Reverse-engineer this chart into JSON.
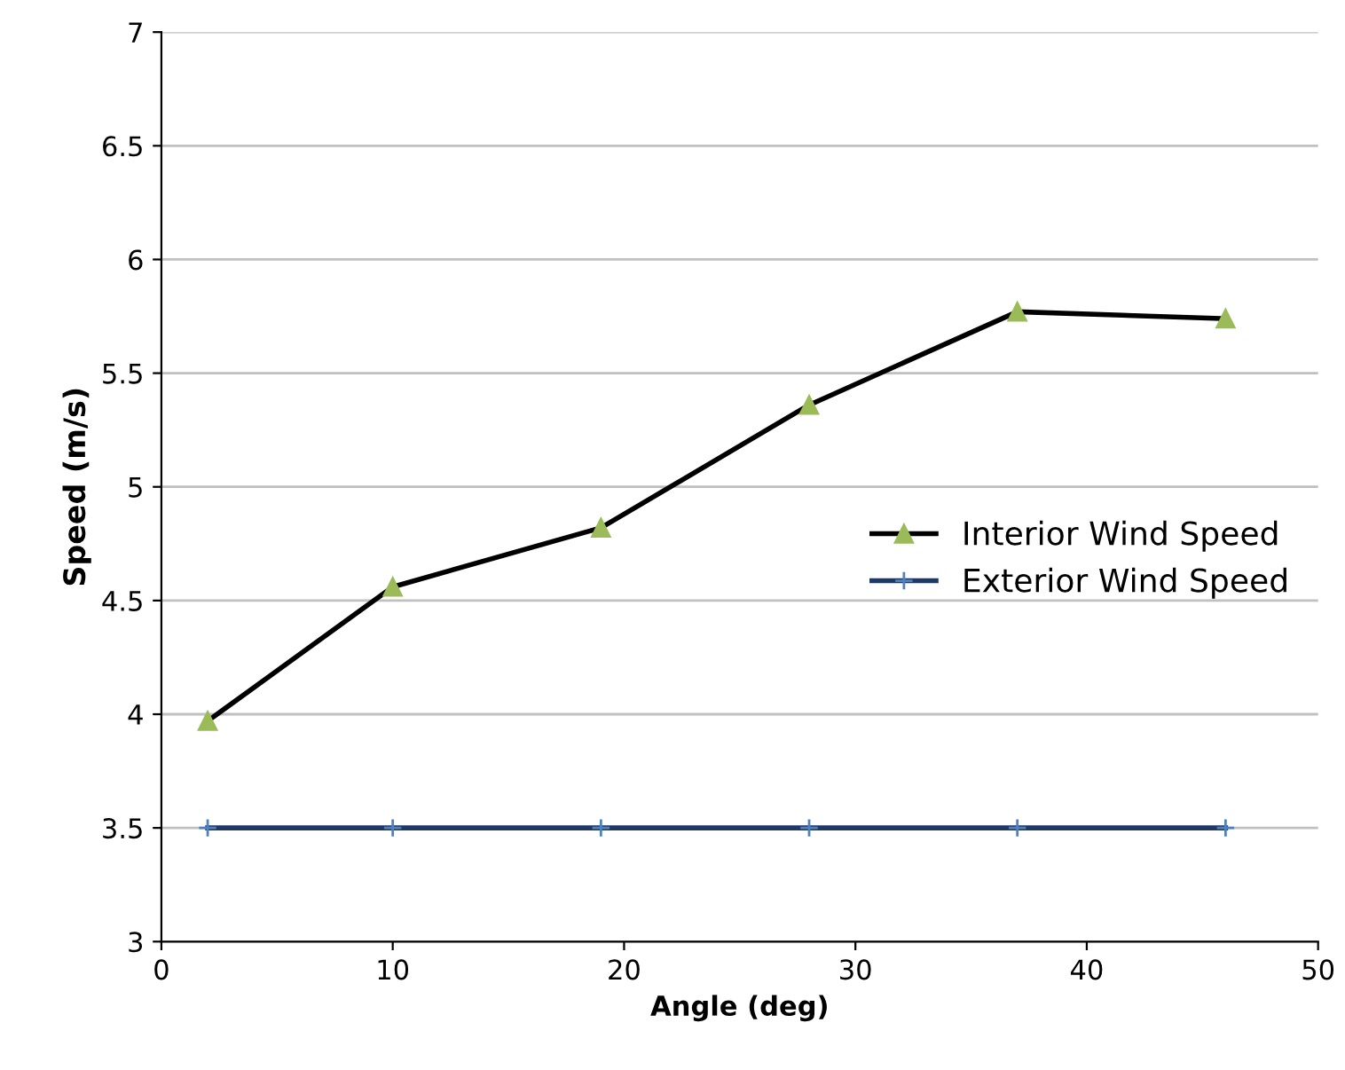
{
  "chart_data": {
    "type": "line",
    "xlabel": "Angle (deg)",
    "ylabel": "Speed (m/s)",
    "xlim": [
      0,
      50
    ],
    "xticks": [
      0,
      10,
      20,
      30,
      40,
      50
    ],
    "ylim": [
      3,
      7
    ],
    "yticks": [
      3,
      3.5,
      4,
      4.5,
      5,
      5.5,
      6,
      6.5,
      7
    ],
    "grid": "y",
    "legend": "right",
    "line_style": "solid",
    "series": [
      {
        "name": "Interior Wind Speed",
        "color": "#000000",
        "colors": [
          "#9bbb59",
          "#9bbb59",
          "#9bbb59",
          "#9bbb59",
          "#9bbb59",
          "#9bbb59"
        ],
        "marker": "triangle",
        "x": [
          2,
          10,
          19,
          28,
          37,
          46
        ],
        "values": [
          3.97,
          4.56,
          4.82,
          5.36,
          5.77,
          5.74
        ]
      },
      {
        "name": "Exterior Wind Speed",
        "color": "#1f3864",
        "colors": [
          "#4f81bd",
          "#4f81bd",
          "#4f81bd",
          "#4f81bd",
          "#4f81bd",
          "#4f81bd"
        ],
        "marker": "cross",
        "x": [
          2,
          10,
          19,
          28,
          37,
          46
        ],
        "values": [
          3.5,
          3.5,
          3.5,
          3.5,
          3.5,
          3.5
        ]
      }
    ]
  }
}
